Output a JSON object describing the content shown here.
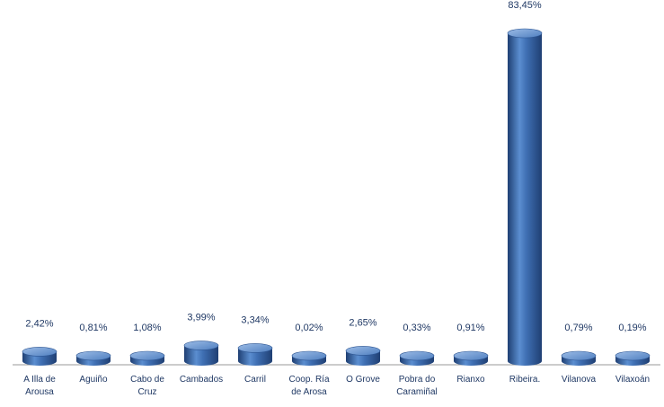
{
  "chart_data": {
    "type": "bar",
    "style": "3d-cylinder",
    "categories": [
      [
        "A Illa de",
        "Arousa"
      ],
      [
        "Aguiño"
      ],
      [
        "Cabo de",
        "Cruz"
      ],
      [
        "Cambados"
      ],
      [
        "Carril"
      ],
      [
        "Coop. Ría",
        "de Arosa"
      ],
      [
        "O Grove"
      ],
      [
        "Pobra do",
        "Caramiñal"
      ],
      [
        "Rianxo"
      ],
      [
        "Ribeira."
      ],
      [
        "Vilanova"
      ],
      [
        "Vilaxoán"
      ]
    ],
    "values": [
      2.42,
      0.81,
      1.08,
      3.99,
      3.34,
      0.02,
      2.65,
      0.33,
      0.91,
      83.45,
      0.79,
      0.19
    ],
    "value_labels": [
      "2,42%",
      "0,81%",
      "1,08%",
      "3,99%",
      "3,34%",
      "0,02%",
      "2,65%",
      "0,33%",
      "0,91%",
      "83,45%",
      "0,79%",
      "0,19%"
    ],
    "ylim": [
      0,
      83.45
    ],
    "grid": false,
    "legend": "none",
    "colors": {
      "bar": "#3f6fb3",
      "bar_dark": "#1f3f73",
      "bar_light": "#8fb2e0",
      "label": "#1f3864",
      "axis": "#9a9a9a"
    }
  }
}
